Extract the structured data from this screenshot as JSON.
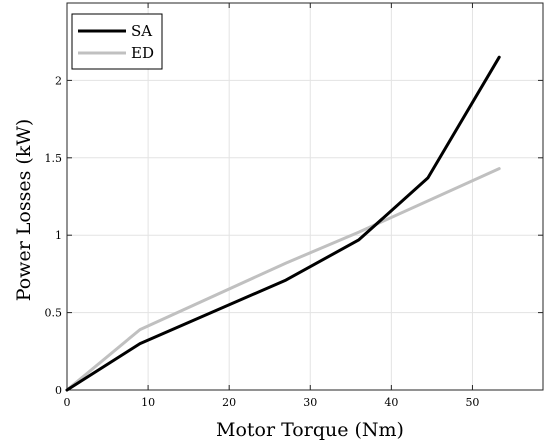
{
  "chart_data": {
    "type": "line",
    "title": "",
    "xlabel": "Motor Torque (Nm)",
    "ylabel": "Power Losses (kW)",
    "xlim": [
      0,
      58.7
    ],
    "ylim": [
      0,
      2.5
    ],
    "xticks": [
      "0",
      "10",
      "20",
      "30",
      "40",
      "50"
    ],
    "xtick_values": [
      0,
      10,
      20,
      30,
      40,
      50
    ],
    "yticks": [
      "0",
      "0.5",
      "1",
      "1.5",
      "2"
    ],
    "ytick_values": [
      0,
      0.5,
      1,
      1.5,
      2
    ],
    "grid": true,
    "legend_position": "top-left",
    "series": [
      {
        "name": "SA",
        "color": "#000000",
        "x": [
          0,
          9,
          27,
          36,
          44.5,
          53.3
        ],
        "y": [
          0,
          0.3,
          0.71,
          0.97,
          1.37,
          2.15
        ]
      },
      {
        "name": "ED",
        "color": "#c0c0c0",
        "x": [
          0,
          9,
          27,
          36,
          53.3
        ],
        "y": [
          0,
          0.39,
          0.82,
          1.02,
          1.43
        ]
      }
    ]
  }
}
